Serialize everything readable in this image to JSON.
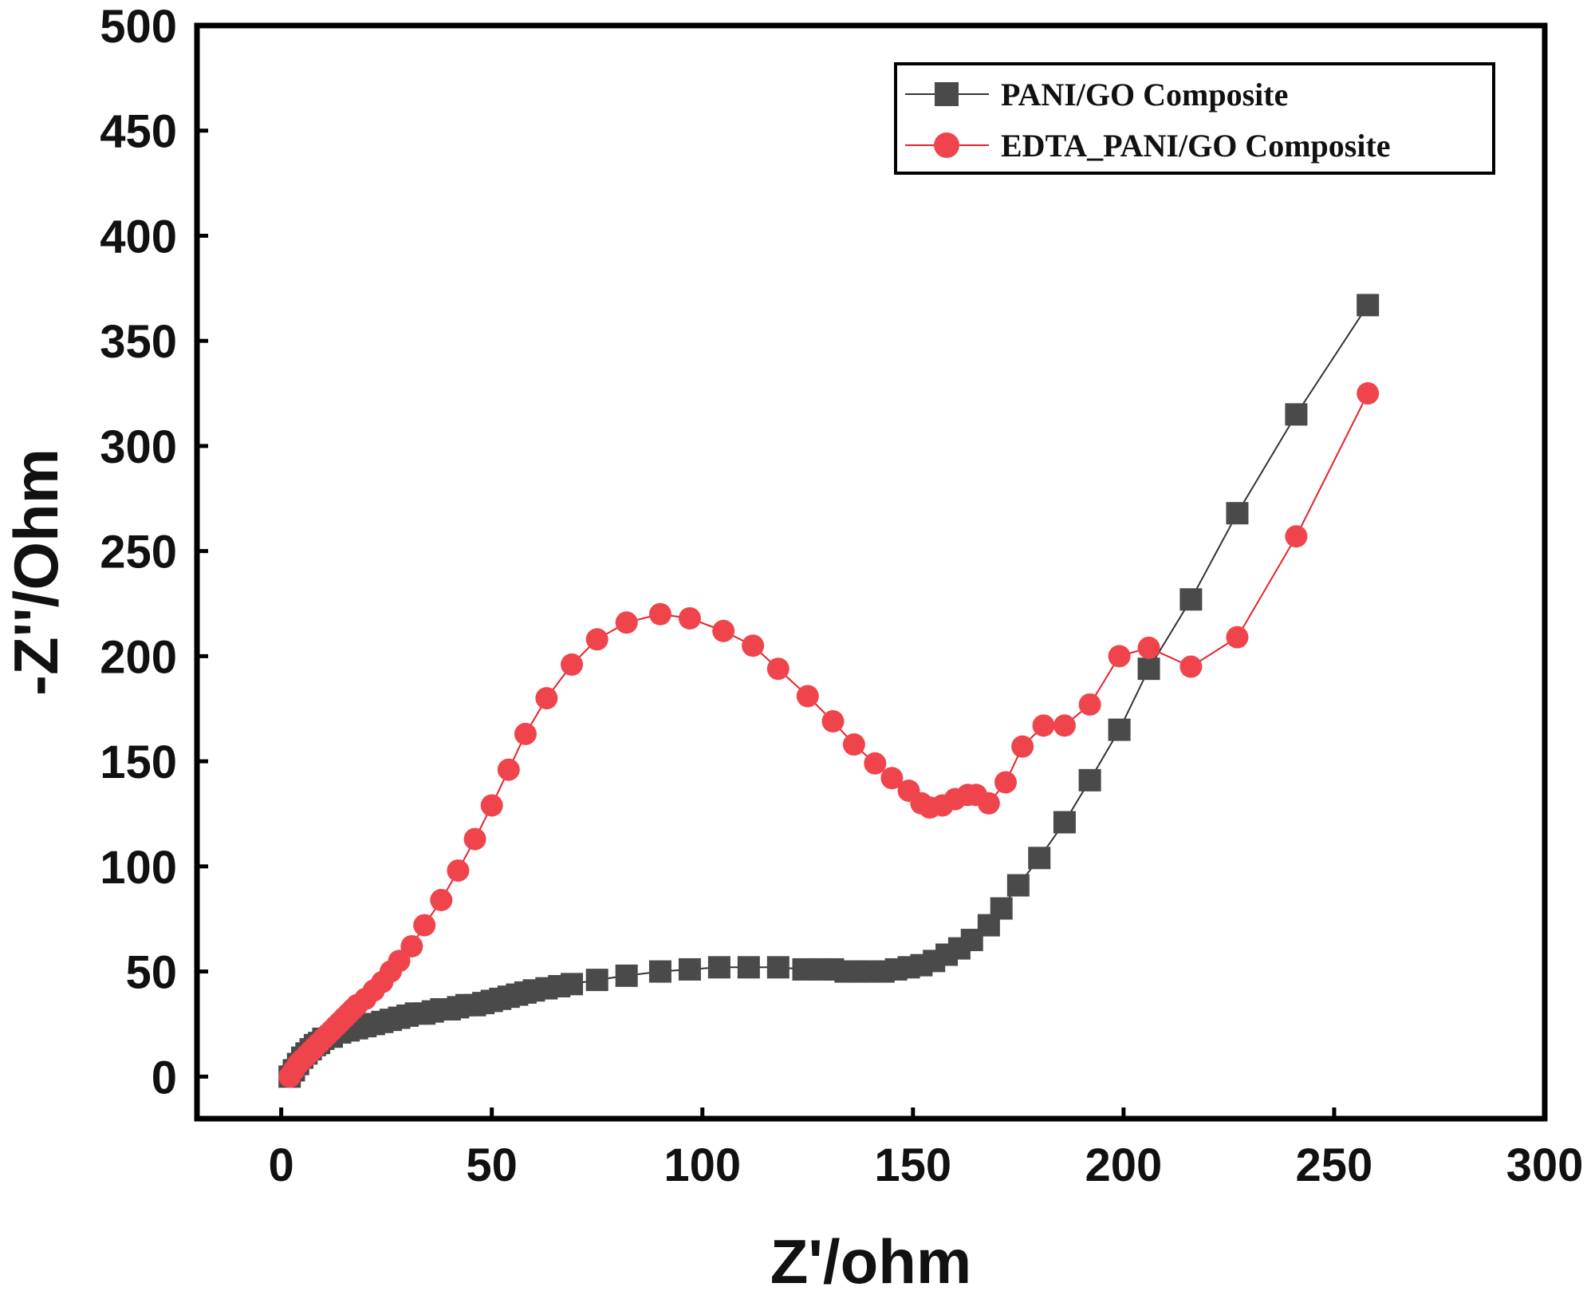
{
  "chart_data": {
    "type": "scatter",
    "title": "",
    "xlabel": "Z'/ohm",
    "ylabel": "-Z''/Ohm",
    "xlim": [
      -20,
      300
    ],
    "ylim": [
      -20,
      500
    ],
    "xticks": [
      0,
      50,
      100,
      150,
      200,
      250,
      300
    ],
    "yticks": [
      0,
      50,
      100,
      150,
      200,
      250,
      300,
      350,
      400,
      450,
      500
    ],
    "grid": false,
    "legend_position": "top-right",
    "series": [
      {
        "name": "PANI/GO Composite",
        "marker": "square",
        "color": "#4a4a4a",
        "line_color": "#333333",
        "points": [
          [
            2,
            0
          ],
          [
            3,
            3
          ],
          [
            4,
            6
          ],
          [
            5,
            9
          ],
          [
            6,
            11
          ],
          [
            7,
            13
          ],
          [
            8,
            15
          ],
          [
            9,
            16
          ],
          [
            10,
            18
          ],
          [
            12,
            19
          ],
          [
            14,
            21
          ],
          [
            16,
            22
          ],
          [
            18,
            23
          ],
          [
            20,
            24
          ],
          [
            22,
            25
          ],
          [
            24,
            26
          ],
          [
            26,
            27
          ],
          [
            28,
            28
          ],
          [
            30,
            29
          ],
          [
            32,
            30
          ],
          [
            34,
            30
          ],
          [
            36,
            31
          ],
          [
            38,
            32
          ],
          [
            40,
            32
          ],
          [
            42,
            33
          ],
          [
            44,
            34
          ],
          [
            46,
            34
          ],
          [
            48,
            35
          ],
          [
            50,
            36
          ],
          [
            52,
            37
          ],
          [
            54,
            38
          ],
          [
            56,
            39
          ],
          [
            58,
            40
          ],
          [
            60,
            41
          ],
          [
            63,
            42
          ],
          [
            66,
            43
          ],
          [
            69,
            44
          ],
          [
            75,
            46
          ],
          [
            82,
            48
          ],
          [
            90,
            50
          ],
          [
            97,
            51
          ],
          [
            104,
            52
          ],
          [
            111,
            52
          ],
          [
            118,
            52
          ],
          [
            124,
            51
          ],
          [
            128,
            51
          ],
          [
            131,
            51
          ],
          [
            134,
            50
          ],
          [
            137,
            50
          ],
          [
            140,
            50
          ],
          [
            143,
            50
          ],
          [
            146,
            51
          ],
          [
            149,
            52
          ],
          [
            152,
            53
          ],
          [
            155,
            55
          ],
          [
            158,
            58
          ],
          [
            161,
            61
          ],
          [
            164,
            65
          ],
          [
            168,
            72
          ],
          [
            171,
            80
          ],
          [
            175,
            91
          ],
          [
            180,
            104
          ],
          [
            186,
            121
          ],
          [
            192,
            141
          ],
          [
            199,
            165
          ],
          [
            206,
            194
          ],
          [
            216,
            227
          ],
          [
            227,
            268
          ],
          [
            241,
            315
          ],
          [
            258,
            367
          ]
        ]
      },
      {
        "name": "EDTA_PANI/GO Composite",
        "marker": "circle",
        "color": "#f0444c",
        "line_color": "#e8202a",
        "points": [
          [
            2,
            0
          ],
          [
            3,
            3
          ],
          [
            4,
            6
          ],
          [
            5,
            8
          ],
          [
            6,
            10
          ],
          [
            7,
            12
          ],
          [
            8,
            14
          ],
          [
            9,
            16
          ],
          [
            10,
            18
          ],
          [
            11,
            20
          ],
          [
            12,
            22
          ],
          [
            13,
            24
          ],
          [
            14,
            26
          ],
          [
            15,
            28
          ],
          [
            16,
            30
          ],
          [
            17,
            32
          ],
          [
            18,
            34
          ],
          [
            20,
            37
          ],
          [
            22,
            41
          ],
          [
            24,
            45
          ],
          [
            26,
            50
          ],
          [
            28,
            55
          ],
          [
            31,
            62
          ],
          [
            34,
            72
          ],
          [
            38,
            84
          ],
          [
            42,
            98
          ],
          [
            46,
            113
          ],
          [
            50,
            129
          ],
          [
            54,
            146
          ],
          [
            58,
            163
          ],
          [
            63,
            180
          ],
          [
            69,
            196
          ],
          [
            75,
            208
          ],
          [
            82,
            216
          ],
          [
            90,
            220
          ],
          [
            97,
            218
          ],
          [
            105,
            212
          ],
          [
            112,
            205
          ],
          [
            118,
            194
          ],
          [
            125,
            181
          ],
          [
            131,
            169
          ],
          [
            136,
            158
          ],
          [
            141,
            149
          ],
          [
            145,
            142
          ],
          [
            149,
            136
          ],
          [
            152,
            130
          ],
          [
            154,
            128
          ],
          [
            157,
            129
          ],
          [
            160,
            132
          ],
          [
            163,
            134
          ],
          [
            165,
            134
          ],
          [
            168,
            130
          ],
          [
            172,
            140
          ],
          [
            176,
            157
          ],
          [
            181,
            167
          ],
          [
            186,
            167
          ],
          [
            192,
            177
          ],
          [
            199,
            200
          ],
          [
            206,
            204
          ],
          [
            216,
            195
          ],
          [
            227,
            209
          ],
          [
            241,
            257
          ],
          [
            258,
            325
          ]
        ]
      }
    ]
  }
}
